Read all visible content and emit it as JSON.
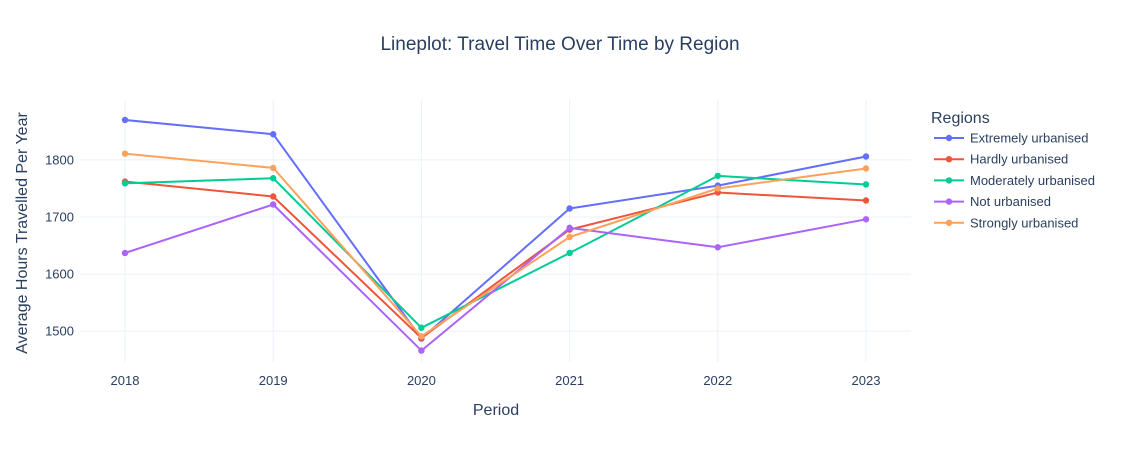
{
  "chart_data": {
    "type": "line",
    "title": "Lineplot: Travel Time Over Time by Region",
    "xlabel": "Period",
    "ylabel": "Average Hours Travelled Per Year",
    "x": [
      "2018",
      "2019",
      "2020",
      "2021",
      "2022",
      "2023"
    ],
    "yticks": [
      1500,
      1600,
      1700,
      1800
    ],
    "ylim": [
      1446,
      1905
    ],
    "grid": true,
    "legend": {
      "title": "Regions",
      "placement": "right"
    },
    "series": [
      {
        "name": "Extremely urbanised",
        "color": "#636efa",
        "values": [
          1870,
          1845,
          1487,
          1715,
          1755,
          1806
        ]
      },
      {
        "name": "Hardly urbanised",
        "color": "#ef553b",
        "values": [
          1762,
          1736,
          1488,
          1678,
          1743,
          1729
        ]
      },
      {
        "name": "Moderately urbanised",
        "color": "#00cc96",
        "values": [
          1759,
          1768,
          1506,
          1637,
          1772,
          1757
        ]
      },
      {
        "name": "Not urbanised",
        "color": "#ab63fa",
        "values": [
          1637,
          1722,
          1466,
          1681,
          1647,
          1696
        ]
      },
      {
        "name": "Strongly urbanised",
        "color": "#ffa15a",
        "values": [
          1811,
          1786,
          1491,
          1665,
          1750,
          1785
        ]
      }
    ]
  }
}
